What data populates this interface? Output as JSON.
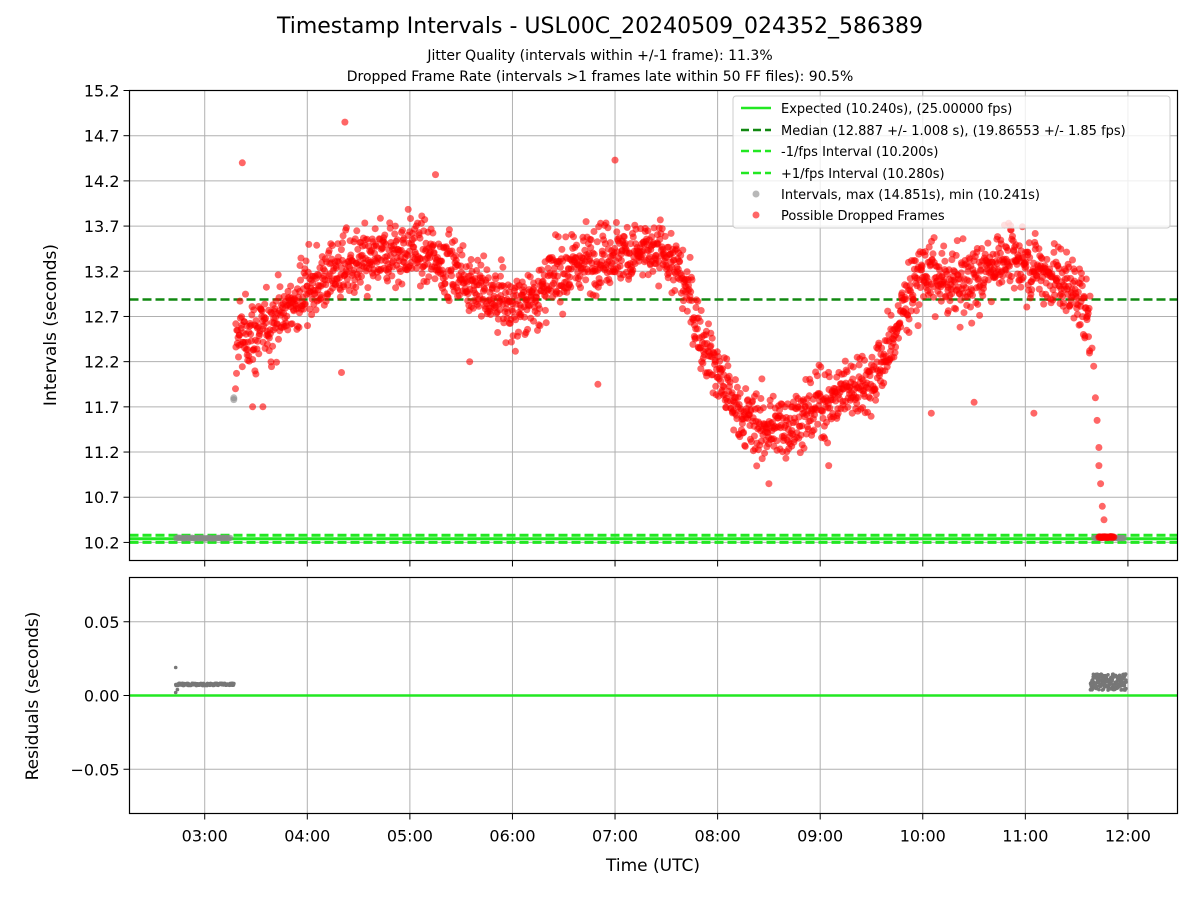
{
  "title": "Timestamp Intervals - USL00C_20240509_024352_586389",
  "subtitle_1": "Jitter Quality (intervals within +/-1 frame): 11.3%",
  "subtitle_2": "Dropped Frame Rate (intervals >1 frames late within 50 FF files): 90.5%",
  "colors": {
    "expected": "#22e822",
    "median": "#118811",
    "interval_band": "#22e822",
    "normal_points": "#888888",
    "dropped_points": "#ff0000",
    "residuals": "#777777"
  },
  "chart_data": [
    {
      "type": "scatter",
      "panel": "top",
      "ylabel": "Intervals (seconds)",
      "ylim": [
        10.0,
        15.2
      ],
      "yticks": [
        "10.2",
        "10.7",
        "11.2",
        "11.7",
        "12.2",
        "12.7",
        "13.2",
        "13.7",
        "14.2",
        "14.7",
        "15.2"
      ],
      "xlim": [
        "02:16",
        "12:29"
      ],
      "grid": true,
      "legend_position": "top-right",
      "legend": [
        "Expected (10.240s), (25.00000 fps)",
        "Median (12.887 +/- 1.008 s), (19.86553 +/- 1.85 fps)",
        "-1/fps Interval (10.200s)",
        "+1/fps Interval (10.280s)",
        "Intervals, max (14.851s), min (10.241s)",
        "Possible Dropped Frames"
      ],
      "reference_lines": {
        "expected": 10.24,
        "median": 12.887,
        "minus_1_fps": 10.2,
        "plus_1_fps": 10.28
      },
      "normal_clusters": [
        {
          "from": "02:43",
          "to": "03:15",
          "value": 10.248
        },
        {
          "from": "11:40",
          "to": "11:58",
          "value": 10.249
        }
      ],
      "extra_normal_points": [
        {
          "x": "03:17",
          "y": 11.78
        },
        {
          "x": "03:17",
          "y": 11.8
        }
      ],
      "dropped_trend": [
        [
          "03:18",
          12.45
        ],
        [
          "03:30",
          12.5
        ],
        [
          "03:45",
          12.7
        ],
        [
          "04:00",
          13.0
        ],
        [
          "04:15",
          13.2
        ],
        [
          "04:30",
          13.25
        ],
        [
          "04:45",
          13.35
        ],
        [
          "05:00",
          13.45
        ],
        [
          "05:15",
          13.35
        ],
        [
          "05:30",
          13.15
        ],
        [
          "05:45",
          12.95
        ],
        [
          "06:00",
          12.8
        ],
        [
          "06:15",
          12.95
        ],
        [
          "06:30",
          13.2
        ],
        [
          "06:45",
          13.35
        ],
        [
          "07:00",
          13.4
        ],
        [
          "07:15",
          13.4
        ],
        [
          "07:30",
          13.4
        ],
        [
          "07:40",
          13.1
        ],
        [
          "07:50",
          12.5
        ],
        [
          "08:00",
          12.1
        ],
        [
          "08:10",
          11.7
        ],
        [
          "08:20",
          11.5
        ],
        [
          "08:30",
          11.45
        ],
        [
          "08:40",
          11.5
        ],
        [
          "08:50",
          11.6
        ],
        [
          "09:00",
          11.75
        ],
        [
          "09:10",
          11.8
        ],
        [
          "09:20",
          11.95
        ],
        [
          "09:30",
          12.0
        ],
        [
          "09:40",
          12.3
        ],
        [
          "09:50",
          12.9
        ],
        [
          "10:00",
          13.2
        ],
        [
          "10:15",
          13.05
        ],
        [
          "10:30",
          13.1
        ],
        [
          "10:45",
          13.35
        ],
        [
          "11:00",
          13.3
        ],
        [
          "11:15",
          13.15
        ],
        [
          "11:30",
          13.0
        ],
        [
          "11:38",
          12.6
        ]
      ],
      "dropped_spread_s": 0.3,
      "dropped_outliers": [
        {
          "x": "03:22",
          "y": 14.4
        },
        {
          "x": "04:22",
          "y": 14.85
        },
        {
          "x": "04:20",
          "y": 12.08
        },
        {
          "x": "03:18",
          "y": 11.9
        },
        {
          "x": "03:28",
          "y": 11.7
        },
        {
          "x": "03:34",
          "y": 11.7
        },
        {
          "x": "06:50",
          "y": 11.95
        },
        {
          "x": "07:00",
          "y": 14.43
        },
        {
          "x": "05:15",
          "y": 14.27
        },
        {
          "x": "05:35",
          "y": 12.2
        },
        {
          "x": "10:30",
          "y": 11.75
        },
        {
          "x": "11:05",
          "y": 11.63
        },
        {
          "x": "10:05",
          "y": 11.63
        },
        {
          "x": "08:30",
          "y": 10.85
        },
        {
          "x": "09:05",
          "y": 11.05
        }
      ],
      "dropped_tail": [
        {
          "x": "11:41",
          "y": 11.8
        },
        {
          "x": "11:42",
          "y": 11.55
        },
        {
          "x": "11:43",
          "y": 11.25
        },
        {
          "x": "11:43",
          "y": 11.05
        },
        {
          "x": "11:44",
          "y": 10.85
        },
        {
          "x": "11:45",
          "y": 10.6
        },
        {
          "x": "11:46",
          "y": 10.45
        },
        {
          "x": "11:40",
          "y": 12.15
        },
        {
          "x": "11:39",
          "y": 12.35
        }
      ],
      "dropped_floor": {
        "from": "11:43",
        "to": "11:52",
        "value": 10.26
      }
    },
    {
      "type": "scatter",
      "panel": "bottom",
      "xlabel": "Time (UTC)",
      "ylabel": "Residuals (seconds)",
      "ylim": [
        -0.08,
        0.08
      ],
      "yticks": [
        "0.05",
        "0.00",
        "−0.05"
      ],
      "ytick_values": [
        0.05,
        0.0,
        -0.05
      ],
      "xticks": [
        "03:00",
        "04:00",
        "05:00",
        "06:00",
        "07:00",
        "08:00",
        "09:00",
        "10:00",
        "11:00",
        "12:00"
      ],
      "xlim": [
        "02:16",
        "12:29"
      ],
      "grid": true,
      "zero_line": 0.0,
      "residual_clusters": [
        {
          "from": "02:43",
          "to": "03:17",
          "center": 0.0075,
          "spread": 0.0008
        },
        {
          "from": "11:38",
          "to": "11:59",
          "center": 0.009,
          "spread": 0.0055
        }
      ],
      "residual_extra": [
        {
          "x": "02:43",
          "y": 0.019
        },
        {
          "x": "02:43",
          "y": 0.002
        },
        {
          "x": "02:44",
          "y": 0.004
        }
      ]
    }
  ]
}
